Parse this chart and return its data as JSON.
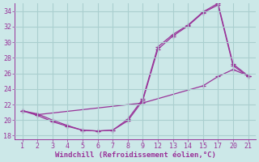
{
  "background_color": "#cce8e8",
  "grid_color": "#aacfcf",
  "line_color": "#993399",
  "xlabel": "Windchill (Refroidissement éolien,°C)",
  "xlabel_fontsize": 6.5,
  "tick_fontsize": 6,
  "xtick_labels": [
    "1",
    "2",
    "3",
    "4",
    "5",
    "6",
    "7",
    "8",
    "9",
    "12",
    "13",
    "14",
    "15",
    "17",
    "20",
    "21"
  ],
  "yticks": [
    18,
    20,
    22,
    24,
    26,
    28,
    30,
    32,
    34
  ],
  "ylim": [
    17.5,
    35.0
  ],
  "line1_y": [
    21.2,
    20.6,
    19.8,
    19.2,
    18.7,
    18.6,
    18.7,
    20.1,
    22.7,
    29.4,
    31.0,
    32.2,
    33.9,
    35.0,
    27.2,
    25.7
  ],
  "line2_y": [
    21.2,
    20.8,
    20.0,
    19.3,
    18.7,
    18.6,
    18.7,
    19.9,
    22.5,
    29.1,
    30.8,
    32.1,
    33.8,
    34.8,
    27.0,
    25.6
  ],
  "line3_x_idx": [
    0,
    1,
    8,
    12,
    13,
    14,
    15
  ],
  "line3_y": [
    21.2,
    20.7,
    22.2,
    24.4,
    25.6,
    26.5,
    25.7
  ]
}
